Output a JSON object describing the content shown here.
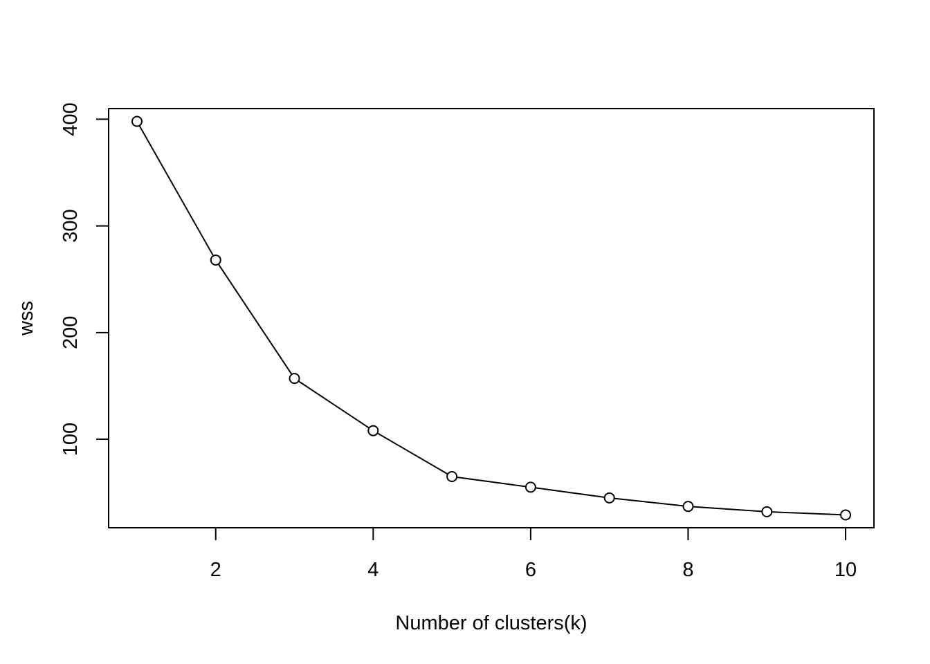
{
  "chart_data": {
    "type": "line",
    "markers": "open-circle",
    "title": "",
    "xlabel": "Number of clusters(k)",
    "ylabel": "wss",
    "x": [
      1,
      2,
      3,
      4,
      5,
      6,
      7,
      8,
      9,
      10
    ],
    "series": [
      {
        "values": [
          398,
          268,
          157,
          108,
          65,
          55,
          45,
          37,
          32,
          29
        ]
      }
    ],
    "xlim": [
      0.64,
      10.36
    ],
    "ylim": [
      17,
      410
    ],
    "xticks": [
      2,
      4,
      6,
      8,
      10
    ],
    "xtick_labels": [
      "2",
      "4",
      "6",
      "8",
      "10"
    ],
    "yticks": [
      100,
      200,
      300,
      400
    ],
    "ytick_labels": [
      "100",
      "200",
      "300",
      "400"
    ],
    "grid": false,
    "legend": "none",
    "colors": {
      "line": "#000000",
      "axes": "#000000",
      "background": "#ffffff"
    }
  }
}
